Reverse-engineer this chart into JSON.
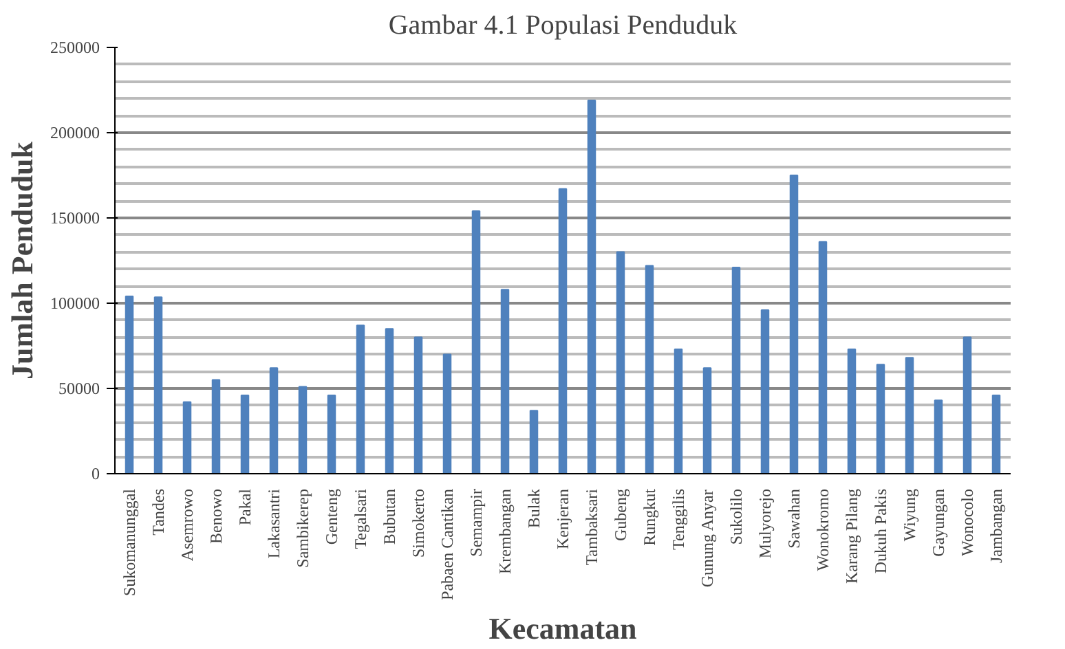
{
  "chart_data": {
    "type": "bar",
    "title": "Gambar 4.1 Populasi Penduduk",
    "xlabel": "Kecamatan",
    "ylabel": "Jumlah Penduduk",
    "categories": [
      "Sukomanunggal",
      "Tandes",
      "Asemrowo",
      "Benowo",
      "Pakal",
      "Lakasantri",
      "Sambikerep",
      "Genteng",
      "Tegalsari",
      "Bubutan",
      "Simokerto",
      "Pabaen Cantikan",
      "Semampir",
      "Krembangan",
      "Bulak",
      "Kenjeran",
      "Tambaksari",
      "Gubeng",
      "Rungkut",
      "Tenggilis",
      "Gunung Anyar",
      "Sukolilo",
      "Mulyorejo",
      "Sawahan",
      "Wonokromo",
      "Karang Pilang",
      "Dukuh Pakis",
      "Wiyung",
      "Gayungan",
      "Wonocolo",
      "Jambangan"
    ],
    "values": [
      104000,
      103500,
      42000,
      55000,
      46000,
      62000,
      51000,
      46000,
      87000,
      85000,
      80000,
      70000,
      154000,
      108000,
      37000,
      167000,
      219000,
      130000,
      122000,
      73000,
      62000,
      121000,
      96000,
      175000,
      136000,
      73000,
      64000,
      68000,
      43000,
      80000,
      46000
    ],
    "color": "#4f81bd",
    "ylim": [
      0,
      250000
    ],
    "yticks": [
      0,
      50000,
      100000,
      150000,
      200000,
      250000
    ],
    "grid": "y"
  }
}
